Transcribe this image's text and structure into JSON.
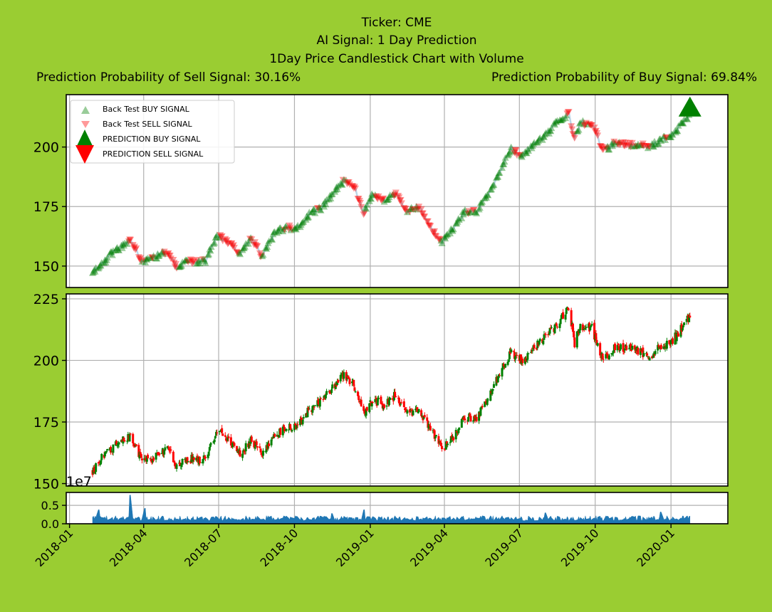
{
  "title": {
    "line1": "Ticker: CME",
    "line2": "AI Signal: 1 Day Prediction",
    "line3": "1Day Price Candlestick Chart with Volume",
    "sell_prob": "Prediction Probability of Sell Signal: 30.16%",
    "buy_prob": "Prediction Probability of Buy Signal: 69.84%"
  },
  "legend": {
    "bt_buy": "Back Test BUY SIGNAL",
    "bt_sell": "Back Test SELL SIGNAL",
    "pred_buy": "PREDICTION BUY SIGNAL",
    "pred_sell": "PREDICTION SELL SIGNAL"
  },
  "colors": {
    "background": "#9acd32",
    "buy": "#008000",
    "sell": "#ff0000",
    "line": "#1f77b4",
    "volume": "#1f77b4"
  },
  "chart_data": [
    {
      "type": "line",
      "panel": "signals",
      "x_range": [
        "2017-12-28",
        "2020-03-10"
      ],
      "ylim": [
        141,
        222
      ],
      "yticks": [
        "150",
        "175",
        "200"
      ],
      "grid": true,
      "legend_position": "top-left",
      "anchors": [
        [
          "2018-01-29",
          147
        ],
        [
          "2018-02-08",
          150
        ],
        [
          "2018-02-20",
          155
        ],
        [
          "2018-03-05",
          158
        ],
        [
          "2018-03-16",
          161
        ],
        [
          "2018-03-30",
          152
        ],
        [
          "2018-04-16",
          154
        ],
        [
          "2018-04-30",
          156
        ],
        [
          "2018-05-10",
          150
        ],
        [
          "2018-05-25",
          152
        ],
        [
          "2018-06-15",
          152
        ],
        [
          "2018-06-29",
          163
        ],
        [
          "2018-07-13",
          160
        ],
        [
          "2018-07-27",
          155
        ],
        [
          "2018-08-10",
          162
        ],
        [
          "2018-08-22",
          154
        ],
        [
          "2018-09-07",
          164
        ],
        [
          "2018-09-21",
          166
        ],
        [
          "2018-10-05",
          166
        ],
        [
          "2018-10-19",
          172
        ],
        [
          "2018-11-02",
          174
        ],
        [
          "2018-11-16",
          180
        ],
        [
          "2018-11-30",
          186
        ],
        [
          "2018-12-14",
          182
        ],
        [
          "2018-12-24",
          172
        ],
        [
          "2019-01-04",
          180
        ],
        [
          "2019-01-18",
          178
        ],
        [
          "2019-02-01",
          180
        ],
        [
          "2019-02-15",
          173
        ],
        [
          "2019-03-01",
          175
        ],
        [
          "2019-03-15",
          166
        ],
        [
          "2019-03-29",
          160
        ],
        [
          "2019-04-12",
          166
        ],
        [
          "2019-04-26",
          173
        ],
        [
          "2019-05-10",
          173
        ],
        [
          "2019-05-24",
          180
        ],
        [
          "2019-06-07",
          190
        ],
        [
          "2019-06-21",
          199
        ],
        [
          "2019-07-05",
          196
        ],
        [
          "2019-07-19",
          201
        ],
        [
          "2019-08-02",
          205
        ],
        [
          "2019-08-16",
          211
        ],
        [
          "2019-08-30",
          214
        ],
        [
          "2019-09-06",
          203
        ],
        [
          "2019-09-13",
          210
        ],
        [
          "2019-09-27",
          210
        ],
        [
          "2019-10-11",
          198
        ],
        [
          "2019-10-25",
          202
        ],
        [
          "2019-11-08",
          201
        ],
        [
          "2019-11-22",
          201
        ],
        [
          "2019-12-06",
          200
        ],
        [
          "2019-12-20",
          203
        ],
        [
          "2020-01-02",
          205
        ],
        [
          "2020-01-10",
          208
        ],
        [
          "2020-01-17",
          211
        ],
        [
          "2020-01-24",
          214
        ]
      ],
      "prediction_buy": {
        "x": "2020-01-24",
        "y": 217
      }
    },
    {
      "type": "candlestick",
      "panel": "price",
      "x_range": [
        "2017-12-28",
        "2020-03-10"
      ],
      "ylim": [
        149,
        227
      ],
      "yticks": [
        "150",
        "175",
        "200",
        "225"
      ],
      "grid": true,
      "anchors": [
        [
          "2018-01-29",
          155
        ],
        [
          "2018-02-08",
          160
        ],
        [
          "2018-02-20",
          164
        ],
        [
          "2018-03-05",
          168
        ],
        [
          "2018-03-16",
          169
        ],
        [
          "2018-03-30",
          160
        ],
        [
          "2018-04-16",
          161
        ],
        [
          "2018-04-30",
          164
        ],
        [
          "2018-05-10",
          158
        ],
        [
          "2018-05-25",
          160
        ],
        [
          "2018-06-15",
          160
        ],
        [
          "2018-06-29",
          172
        ],
        [
          "2018-07-13",
          168
        ],
        [
          "2018-07-27",
          162
        ],
        [
          "2018-08-10",
          168
        ],
        [
          "2018-08-22",
          162
        ],
        [
          "2018-09-07",
          170
        ],
        [
          "2018-09-21",
          173
        ],
        [
          "2018-10-05",
          173
        ],
        [
          "2018-10-19",
          180
        ],
        [
          "2018-11-02",
          183
        ],
        [
          "2018-11-16",
          189
        ],
        [
          "2018-11-30",
          194
        ],
        [
          "2018-12-14",
          189
        ],
        [
          "2018-12-24",
          178
        ],
        [
          "2019-01-04",
          184
        ],
        [
          "2019-01-18",
          182
        ],
        [
          "2019-02-01",
          186
        ],
        [
          "2019-02-15",
          178
        ],
        [
          "2019-03-01",
          180
        ],
        [
          "2019-03-15",
          172
        ],
        [
          "2019-03-29",
          164
        ],
        [
          "2019-04-12",
          169
        ],
        [
          "2019-04-26",
          177
        ],
        [
          "2019-05-10",
          177
        ],
        [
          "2019-05-24",
          185
        ],
        [
          "2019-06-07",
          195
        ],
        [
          "2019-06-21",
          203
        ],
        [
          "2019-07-05",
          200
        ],
        [
          "2019-07-19",
          205
        ],
        [
          "2019-08-02",
          210
        ],
        [
          "2019-08-16",
          214
        ],
        [
          "2019-08-30",
          222
        ],
        [
          "2019-09-06",
          207
        ],
        [
          "2019-09-13",
          214
        ],
        [
          "2019-09-27",
          213
        ],
        [
          "2019-10-11",
          200
        ],
        [
          "2019-10-25",
          205
        ],
        [
          "2019-11-08",
          205
        ],
        [
          "2019-11-22",
          204
        ],
        [
          "2019-12-06",
          201
        ],
        [
          "2019-12-20",
          206
        ],
        [
          "2020-01-02",
          208
        ],
        [
          "2020-01-10",
          211
        ],
        [
          "2020-01-17",
          215
        ],
        [
          "2020-01-24",
          218
        ]
      ]
    },
    {
      "type": "area",
      "panel": "volume",
      "x_range": [
        "2017-12-28",
        "2020-03-10"
      ],
      "ylim": [
        0,
        0.85
      ],
      "yticks": [
        "0.0",
        "0.5"
      ],
      "offset_label": "1e7",
      "grid": true,
      "baseline": 0.15,
      "spikes": [
        [
          "2018-02-05",
          0.38
        ],
        [
          "2018-03-16",
          0.78
        ],
        [
          "2018-04-02",
          0.42
        ],
        [
          "2018-11-16",
          0.28
        ],
        [
          "2018-12-24",
          0.38
        ],
        [
          "2019-08-02",
          0.3
        ],
        [
          "2019-12-20",
          0.32
        ]
      ],
      "xticks": [
        "2018-01",
        "2018-04",
        "2018-07",
        "2018-10",
        "2019-01",
        "2019-04",
        "2019-07",
        "2019-10",
        "2020-01"
      ]
    }
  ]
}
